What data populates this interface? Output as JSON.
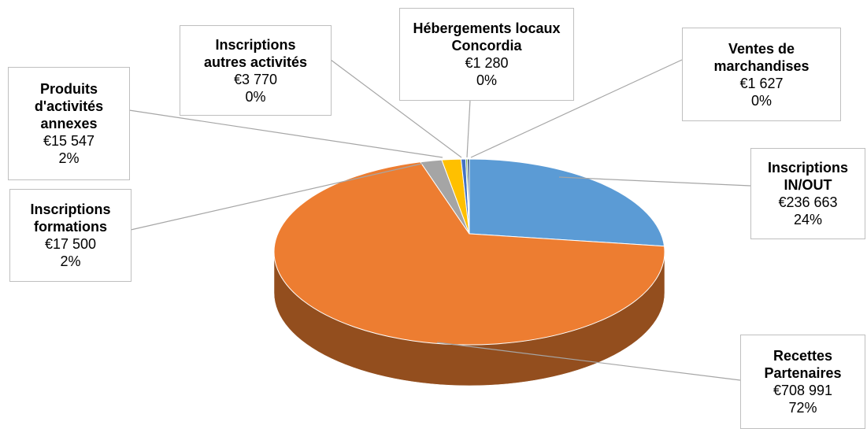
{
  "chart_data": {
    "type": "pie3d",
    "categories": [
      "Inscriptions IN/OUT",
      "Recettes Partenaires",
      "Inscriptions formations",
      "Produits d'activités annexes",
      "Inscriptions autres activités",
      "Hébergements locaux Concordia",
      "Ventes de marchandises"
    ],
    "values": [
      236663,
      708991,
      17500,
      15547,
      3770,
      1280,
      1627
    ],
    "value_labels": [
      "€236 663",
      "€708 991",
      "€17 500",
      "€15 547",
      "€3 770",
      "€1 280",
      "€1 627"
    ],
    "percent_labels": [
      "24%",
      "72%",
      "2%",
      "2%",
      "0%",
      "0%",
      "0%"
    ],
    "colors": [
      "#5b9bd5",
      "#ed7d31",
      "#a5a5a5",
      "#ffc000",
      "#4472c4",
      "#70ad47",
      "#264478"
    ]
  }
}
